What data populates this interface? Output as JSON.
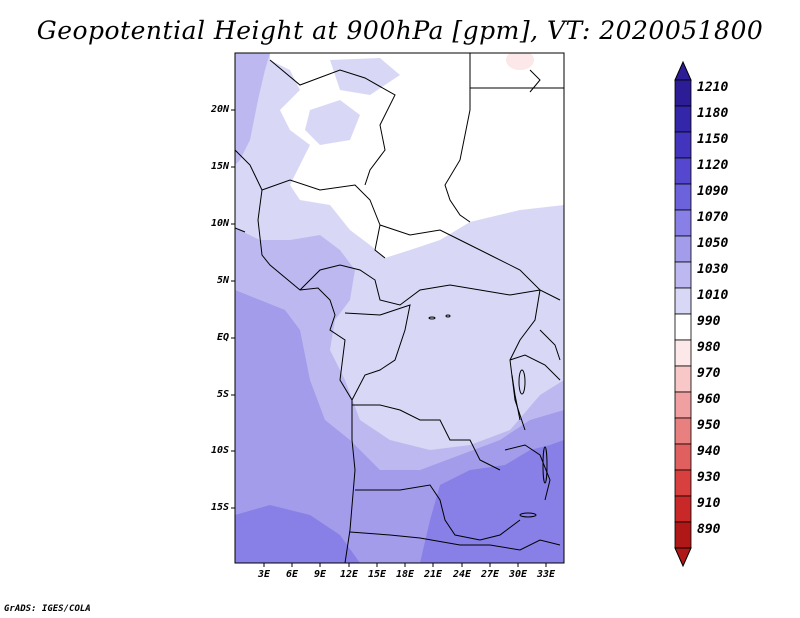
{
  "title": "Geopotential Height at 900hPa [gpm], VT: 2020051800",
  "footer": "GrADS: IGES/COLA",
  "map": {
    "lat_labels": [
      "20N",
      "15N",
      "10N",
      "5N",
      "EQ",
      "5S",
      "10S",
      "15S"
    ],
    "lon_labels": [
      "3E",
      "6E",
      "9E",
      "12E",
      "15E",
      "18E",
      "21E",
      "24E",
      "27E",
      "30E",
      "33E"
    ],
    "fill_colors": {
      "1030": "#d8d8f6",
      "1050": "#bdb9f0",
      "1070": "#a39ceb",
      "1090": "#8880e6",
      "990": "#fce8e8"
    }
  },
  "colorbar": {
    "levels": [
      "1210",
      "1180",
      "1150",
      "1120",
      "1090",
      "1070",
      "1050",
      "1030",
      "1010",
      "990",
      "980",
      "970",
      "960",
      "950",
      "940",
      "930",
      "910",
      "890"
    ],
    "colors": [
      "#2c1c96",
      "#3426a8",
      "#4234bc",
      "#5548ce",
      "#6c62dc",
      "#8880e6",
      "#a39ceb",
      "#bdb9f0",
      "#d8d8f6",
      "#ffffff",
      "#fce8e8",
      "#f8c8c8",
      "#f0a0a0",
      "#e88080",
      "#e06060",
      "#d84040",
      "#c82828",
      "#b01818"
    ]
  }
}
